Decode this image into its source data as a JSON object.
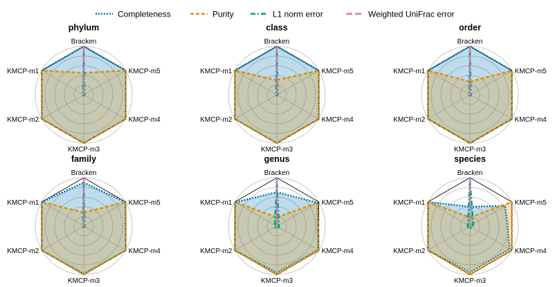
{
  "legend": [
    {
      "name": "Completeness",
      "color": "#0173b2",
      "dash": "dotted"
    },
    {
      "name": "Purity",
      "color": "#de8f05",
      "dash": "dashed"
    },
    {
      "name": "L1 norm error",
      "color": "#029e73",
      "dash": "dashdot"
    },
    {
      "name": "Weighted UniFrac error",
      "color": "#cc78bc",
      "dash": "longdash"
    }
  ],
  "chart_data": [
    {
      "type": "radar",
      "title": "phylum",
      "axes": [
        "Bracken",
        "KMCP-m5",
        "KMCP-m4",
        "KMCP-m3",
        "KMCP-m2",
        "KMCP-m1"
      ],
      "rlim": [
        0,
        1
      ],
      "grid": true,
      "series": [
        {
          "name": "Completeness",
          "values": [
            1.0,
            1.0,
            1.0,
            1.0,
            1.0,
            1.0
          ]
        },
        {
          "name": "Purity",
          "values": [
            0.45,
            1.0,
            1.0,
            1.0,
            1.0,
            1.0
          ]
        },
        {
          "name": "L1 norm error",
          "values": [
            0.9,
            0.02,
            0.02,
            0.02,
            0.02,
            0.02
          ]
        },
        {
          "name": "Weighted UniFrac error",
          "values": [
            1.0,
            0.0,
            0.0,
            0.0,
            0.0,
            0.0
          ]
        }
      ]
    },
    {
      "type": "radar",
      "title": "class",
      "axes": [
        "Bracken",
        "KMCP-m5",
        "KMCP-m4",
        "KMCP-m3",
        "KMCP-m2",
        "KMCP-m1"
      ],
      "rlim": [
        0,
        1
      ],
      "grid": true,
      "series": [
        {
          "name": "Completeness",
          "values": [
            1.0,
            1.0,
            1.0,
            1.0,
            1.0,
            1.0
          ]
        },
        {
          "name": "Purity",
          "values": [
            0.3,
            1.0,
            1.0,
            1.0,
            1.0,
            1.0
          ]
        },
        {
          "name": "L1 norm error",
          "values": [
            0.9,
            0.02,
            0.02,
            0.02,
            0.02,
            0.02
          ]
        },
        {
          "name": "Weighted UniFrac error",
          "values": [
            1.0,
            0.0,
            0.0,
            0.0,
            0.0,
            0.0
          ]
        }
      ]
    },
    {
      "type": "radar",
      "title": "order",
      "axes": [
        "Bracken",
        "KMCP-m5",
        "KMCP-m4",
        "KMCP-m3",
        "KMCP-m2",
        "KMCP-m1"
      ],
      "rlim": [
        0,
        1
      ],
      "grid": true,
      "series": [
        {
          "name": "Completeness",
          "values": [
            1.0,
            1.0,
            1.0,
            1.0,
            1.0,
            1.0
          ]
        },
        {
          "name": "Purity",
          "values": [
            0.27,
            1.0,
            1.0,
            1.0,
            1.0,
            1.0
          ]
        },
        {
          "name": "L1 norm error",
          "values": [
            0.9,
            0.02,
            0.02,
            0.02,
            0.02,
            0.02
          ]
        },
        {
          "name": "Weighted UniFrac error",
          "values": [
            1.0,
            0.0,
            0.0,
            0.0,
            0.0,
            0.0
          ]
        }
      ]
    },
    {
      "type": "radar",
      "title": "family",
      "axes": [
        "Bracken",
        "KMCP-m5",
        "KMCP-m4",
        "KMCP-m3",
        "KMCP-m2",
        "KMCP-m1"
      ],
      "rlim": [
        0,
        1
      ],
      "grid": true,
      "series": [
        {
          "name": "Completeness",
          "values": [
            0.9,
            0.99,
            1.0,
            0.98,
            1.0,
            1.0
          ]
        },
        {
          "name": "Purity",
          "values": [
            0.28,
            1.0,
            1.0,
            1.0,
            1.0,
            1.0
          ]
        },
        {
          "name": "L1 norm error",
          "values": [
            0.9,
            0.02,
            0.02,
            0.02,
            0.02,
            0.02
          ]
        },
        {
          "name": "Weighted UniFrac error",
          "values": [
            1.0,
            0.0,
            0.0,
            0.0,
            0.0,
            0.0
          ]
        }
      ]
    },
    {
      "type": "radar",
      "title": "genus",
      "axes": [
        "Bracken",
        "KMCP-m5",
        "KMCP-m4",
        "KMCP-m3",
        "KMCP-m2",
        "KMCP-m1"
      ],
      "rlim": [
        0,
        1
      ],
      "grid": true,
      "series": [
        {
          "name": "Completeness",
          "values": [
            0.7,
            0.97,
            0.98,
            0.96,
            1.0,
            0.99
          ]
        },
        {
          "name": "Purity",
          "values": [
            0.18,
            0.97,
            1.0,
            1.0,
            1.0,
            1.0
          ]
        },
        {
          "name": "L1 norm error",
          "values": [
            0.9,
            0.05,
            0.05,
            0.05,
            0.05,
            0.05
          ]
        },
        {
          "name": "Weighted UniFrac error",
          "values": [
            1.0,
            0.0,
            0.0,
            0.0,
            0.0,
            0.0
          ]
        }
      ]
    },
    {
      "type": "radar",
      "title": "species",
      "axes": [
        "Bracken",
        "KMCP-m5",
        "KMCP-m4",
        "KMCP-m3",
        "KMCP-m2",
        "KMCP-m1"
      ],
      "rlim": [
        0,
        1
      ],
      "grid": true,
      "series": [
        {
          "name": "Completeness",
          "values": [
            0.4,
            0.84,
            0.95,
            0.95,
            1.0,
            1.0
          ]
        },
        {
          "name": "Purity",
          "values": [
            0.18,
            1.0,
            1.0,
            1.0,
            1.0,
            1.0
          ]
        },
        {
          "name": "L1 norm error",
          "values": [
            0.95,
            0.08,
            0.05,
            0.05,
            0.05,
            0.05
          ]
        },
        {
          "name": "Weighted UniFrac error",
          "values": [
            1.0,
            0.0,
            0.0,
            0.0,
            0.0,
            0.0
          ]
        }
      ]
    }
  ]
}
